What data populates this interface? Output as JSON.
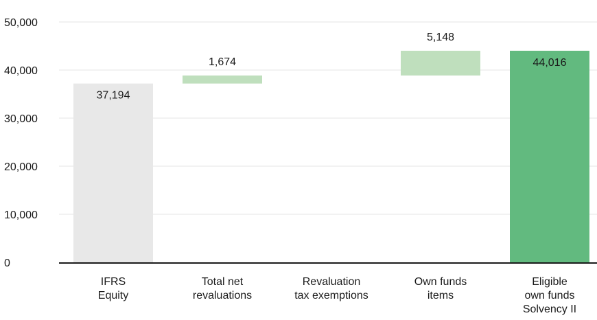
{
  "chart_data": {
    "type": "bar",
    "variant": "waterfall",
    "title": "",
    "xlabel": "",
    "ylabel": "",
    "ylim": [
      0,
      50000
    ],
    "yticks": [
      0,
      10000,
      20000,
      30000,
      40000,
      50000
    ],
    "ytick_labels": [
      "0",
      "10,000",
      "20,000",
      "30,000",
      "40,000",
      "50,000"
    ],
    "grid": true,
    "legend": "none",
    "categories": [
      [
        "IFRS",
        "Equity"
      ],
      [
        "Total net",
        "revaluations"
      ],
      [
        "Revaluation",
        "tax exemptions"
      ],
      [
        "Own funds",
        "items"
      ],
      [
        "Eligible",
        "own funds",
        "Solvency II"
      ]
    ],
    "bars": [
      {
        "start": 0,
        "end": 37194,
        "label": "37,194",
        "kind": "total",
        "label_position": "inside"
      },
      {
        "start": 37194,
        "end": 38868,
        "label": "1,674",
        "kind": "increase",
        "label_position": "above"
      },
      {
        "start": 38868,
        "end": 38868,
        "label": "",
        "kind": "none",
        "label_position": "none"
      },
      {
        "start": 38868,
        "end": 44016,
        "label": "5,148",
        "kind": "increase",
        "label_position": "above"
      },
      {
        "start": 0,
        "end": 44016,
        "label": "44,016",
        "kind": "final",
        "label_position": "inside"
      }
    ],
    "colors": {
      "total": "#e8e8e8",
      "increase": "#bfdfbd",
      "final": "#62ba7f",
      "grid": "#e6e6e6",
      "axis": "#1a1a1a"
    }
  }
}
